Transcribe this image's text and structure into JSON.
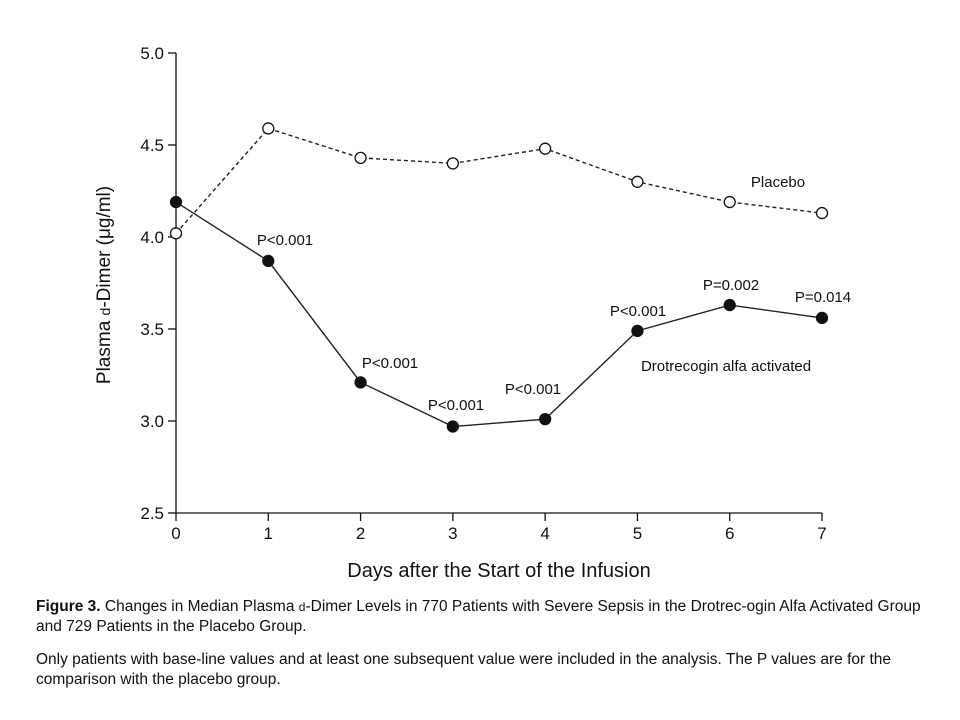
{
  "chart_data": {
    "type": "line",
    "xlabel": "Days after the Start of the Infusion",
    "ylabel_before": "Plasma ",
    "ylabel_smallcap": "d",
    "ylabel_after": "-Dimer (μg/ml)",
    "xlim": [
      0,
      7
    ],
    "ylim": [
      2.5,
      5.0
    ],
    "x_ticks": [
      "0",
      "1",
      "2",
      "3",
      "4",
      "5",
      "6",
      "7"
    ],
    "y_ticks": [
      "2.5",
      "3.0",
      "3.5",
      "4.0",
      "4.5",
      "5.0"
    ],
    "x": [
      0,
      1,
      2,
      3,
      4,
      5,
      6,
      7
    ],
    "series": [
      {
        "name": "Placebo",
        "style": "dashed",
        "marker": "open-circle",
        "values": [
          4.02,
          4.59,
          4.43,
          4.4,
          4.48,
          4.3,
          4.19,
          4.13
        ]
      },
      {
        "name": "Drotrecogin alfa activated",
        "style": "solid",
        "marker": "filled-circle",
        "values": [
          4.19,
          3.87,
          3.21,
          2.97,
          3.01,
          3.49,
          3.63,
          3.56
        ]
      }
    ],
    "p_values": [
      {
        "day": 1,
        "text": "P<0.001"
      },
      {
        "day": 2,
        "text": "P<0.001"
      },
      {
        "day": 3,
        "text": "P<0.001"
      },
      {
        "day": 4,
        "text": "P<0.001"
      },
      {
        "day": 5,
        "text": "P<0.001"
      },
      {
        "day": 6,
        "text": "P=0.002"
      },
      {
        "day": 7,
        "text": "P=0.014"
      }
    ],
    "line_color": "#222222",
    "grid": false
  },
  "caption": {
    "figure_number": "Figure 3.",
    "title_part1": " Changes in Median Plasma ",
    "title_smallcap": "d",
    "title_part2": "-Dimer Levels in 770 Patients with Severe Sepsis in the Drotrec-ogin Alfa Activated Group and 729 Patients in the Placebo Group.",
    "note": "Only patients with base-line values and at least one subsequent value were included in the analysis. The P values are for the comparison with the placebo group."
  }
}
